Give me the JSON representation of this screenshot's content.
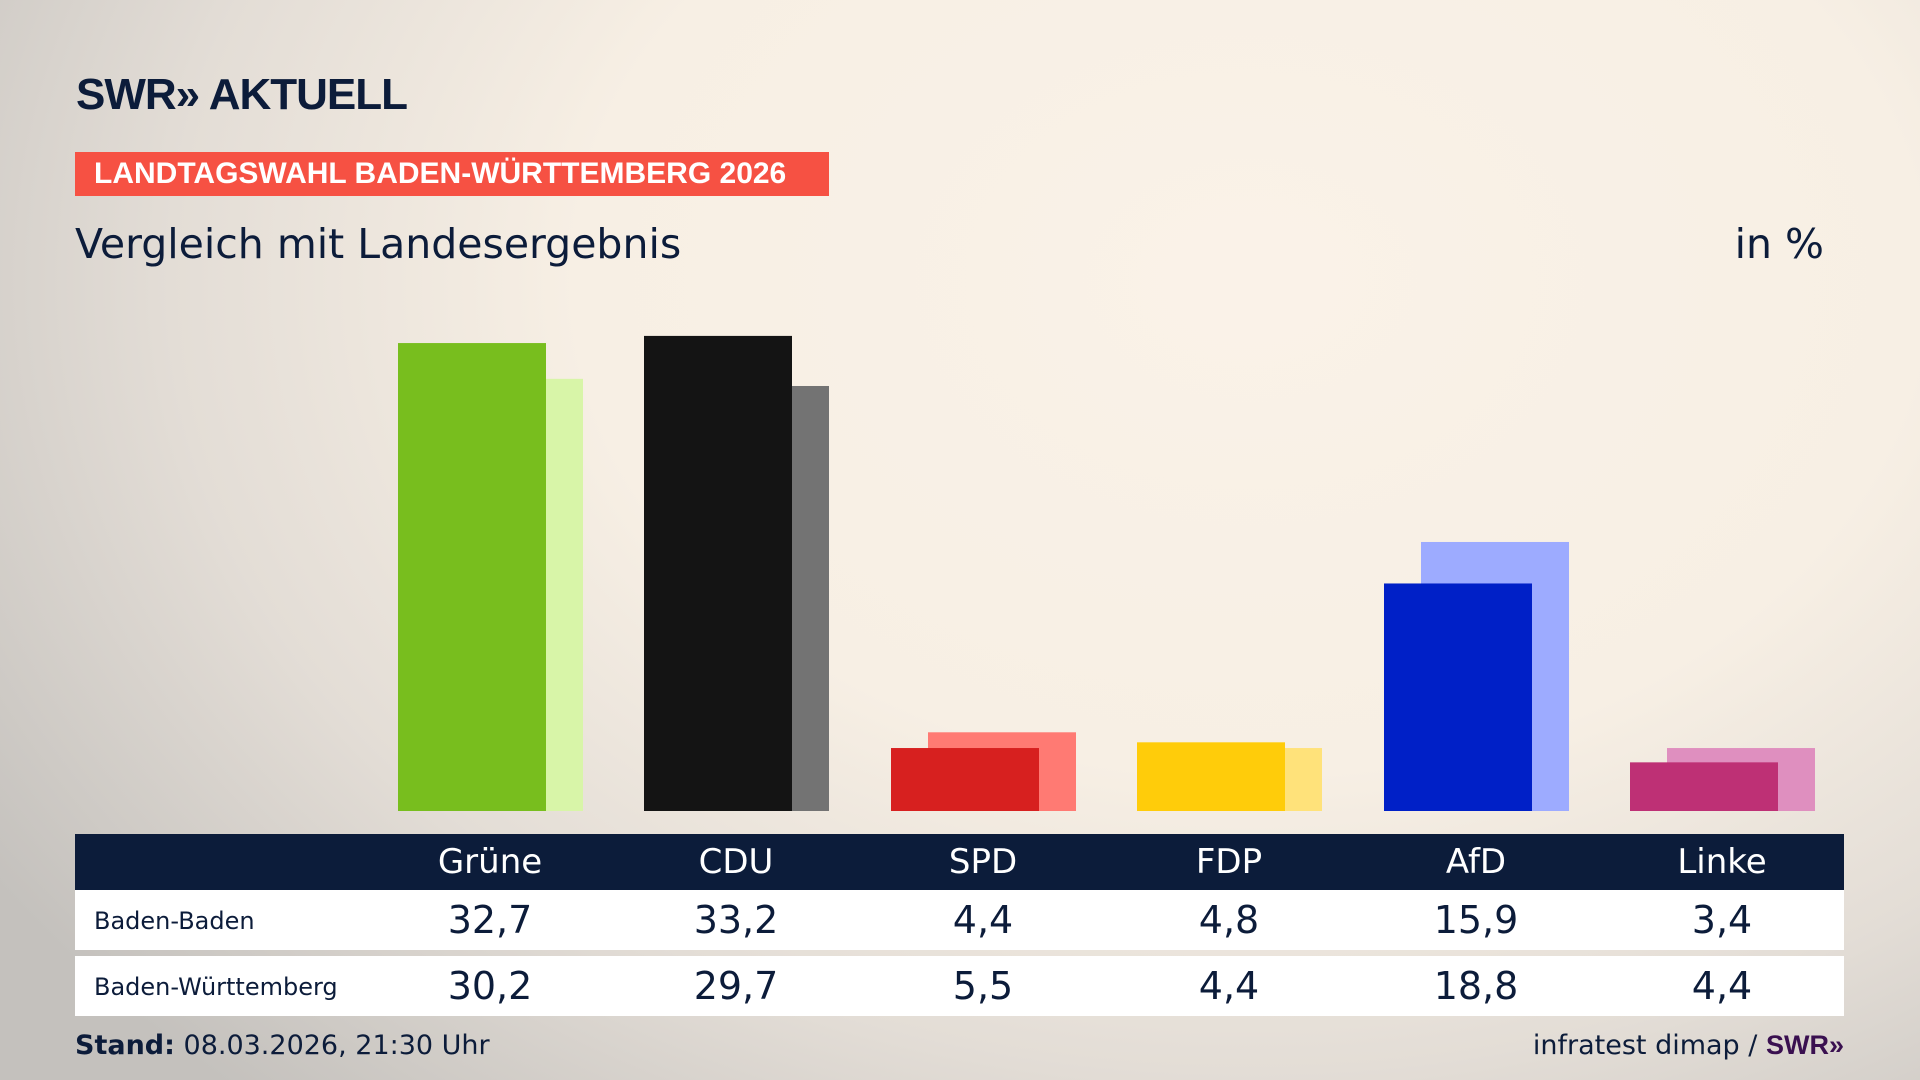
{
  "header": {
    "logo": "SWR» AKTUELL",
    "banner": "LANDTAGSWAHL BADEN-WÜRTTEMBERG 2026",
    "subtitle": "Vergleich mit Landesergebnis",
    "unit": "in %"
  },
  "chart_data": {
    "type": "bar",
    "categories": [
      "Grüne",
      "CDU",
      "SPD",
      "FDP",
      "AfD",
      "Linke"
    ],
    "series": [
      {
        "name": "Baden-Baden",
        "values": [
          32.7,
          33.2,
          4.4,
          4.8,
          15.9,
          3.4
        ]
      },
      {
        "name": "Baden-Württemberg",
        "values": [
          30.2,
          29.7,
          5.5,
          4.4,
          18.8,
          4.4
        ]
      }
    ],
    "colors": {
      "Baden-Baden": [
        "#78be1e",
        "#141414",
        "#d7201f",
        "#ffcc0a",
        "#0020c7",
        "#be3075"
      ],
      "Baden-Württemberg": [
        "#d8f5a8",
        "#737373",
        "#ff7a73",
        "#ffe27a",
        "#9dabff",
        "#df8fbf"
      ]
    },
    "ylim": [
      0,
      34
    ],
    "grid": false
  },
  "table": {
    "headers": [
      "Grüne",
      "CDU",
      "SPD",
      "FDP",
      "AfD",
      "Linke"
    ],
    "rows": [
      {
        "label": "Baden-Baden",
        "values": [
          "32,7",
          "33,2",
          "4,4",
          "4,8",
          "15,9",
          "3,4"
        ]
      },
      {
        "label": "Baden-Württemberg",
        "values": [
          "30,2",
          "29,7",
          "5,5",
          "4,4",
          "18,8",
          "4,4"
        ]
      }
    ]
  },
  "footer": {
    "stand_label": "Stand:",
    "stand_value": "08.03.2026, 21:30 Uhr",
    "source": "infratest dimap /",
    "source_logo": "SWR»"
  }
}
